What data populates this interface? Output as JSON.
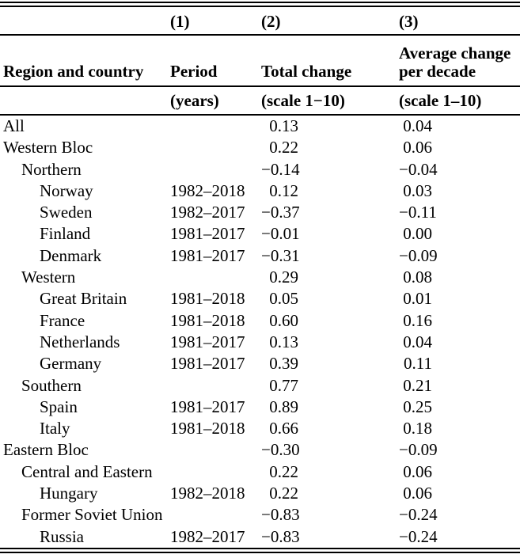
{
  "table": {
    "column_numbers": {
      "c1": "(1)",
      "c2": "(2)",
      "c3": "(3)"
    },
    "headers": {
      "region": "Region and country",
      "period": "Period",
      "total": "Total change",
      "avg": "Average change per decade"
    },
    "subheaders": {
      "period": "(years)",
      "total": "(scale 1−10)",
      "avg": "(scale 1–10)"
    },
    "rows": [
      {
        "label": "All",
        "indent": 0,
        "period": "",
        "total": "0.13",
        "avg": "0.04"
      },
      {
        "label": "Western Bloc",
        "indent": 0,
        "period": "",
        "total": "0.22",
        "avg": "0.06"
      },
      {
        "label": "Northern",
        "indent": 1,
        "period": "",
        "total": "−0.14",
        "avg": "−0.04"
      },
      {
        "label": "Norway",
        "indent": 2,
        "period": "1982–2018",
        "total": "0.12",
        "avg": "0.03"
      },
      {
        "label": "Sweden",
        "indent": 2,
        "period": "1982–2017",
        "total": "−0.37",
        "avg": "−0.11"
      },
      {
        "label": "Finland",
        "indent": 2,
        "period": "1981–2017",
        "total": "−0.01",
        "avg": "0.00"
      },
      {
        "label": "Denmark",
        "indent": 2,
        "period": "1981–2017",
        "total": "−0.31",
        "avg": "−0.09"
      },
      {
        "label": "Western",
        "indent": 1,
        "period": "",
        "total": "0.29",
        "avg": "0.08"
      },
      {
        "label": "Great Britain",
        "indent": 2,
        "period": "1981–2018",
        "total": "0.05",
        "avg": "0.01"
      },
      {
        "label": "France",
        "indent": 2,
        "period": "1981–2018",
        "total": "0.60",
        "avg": "0.16"
      },
      {
        "label": "Netherlands",
        "indent": 2,
        "period": "1981–2017",
        "total": "0.13",
        "avg": "0.04"
      },
      {
        "label": "Germany",
        "indent": 2,
        "period": "1981–2017",
        "total": "0.39",
        "avg": "0.11"
      },
      {
        "label": "Southern",
        "indent": 1,
        "period": "",
        "total": "0.77",
        "avg": "0.21"
      },
      {
        "label": "Spain",
        "indent": 2,
        "period": "1981–2017",
        "total": "0.89",
        "avg": "0.25"
      },
      {
        "label": "Italy",
        "indent": 2,
        "period": "1981–2018",
        "total": "0.66",
        "avg": "0.18"
      },
      {
        "label": "Eastern Bloc",
        "indent": 0,
        "period": "",
        "total": "−0.30",
        "avg": "−0.09"
      },
      {
        "label": "Central and Eastern",
        "indent": 1,
        "period": "",
        "total": "0.22",
        "avg": "0.06"
      },
      {
        "label": "Hungary",
        "indent": 2,
        "period": "1982–2018",
        "total": "0.22",
        "avg": "0.06"
      },
      {
        "label": "Former Soviet Union",
        "indent": 1,
        "period": "",
        "total": "−0.83",
        "avg": "−0.24"
      },
      {
        "label": "Russia",
        "indent": 2,
        "period": "1982–2017",
        "total": "−0.83",
        "avg": "−0.24"
      }
    ]
  }
}
